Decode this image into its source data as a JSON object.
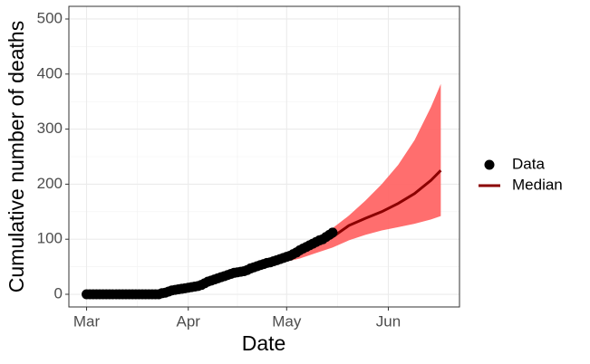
{
  "chart_data": {
    "type": "scatter",
    "x_label": "Date",
    "y_label": "Cumulative number of deaths",
    "xlim": [
      -5.4,
      113.7
    ],
    "ylim": [
      -23,
      523
    ],
    "xticks": [
      {
        "value": 0,
        "label": "Mar"
      },
      {
        "value": 31,
        "label": "Apr"
      },
      {
        "value": 61,
        "label": "May"
      },
      {
        "value": 92,
        "label": "Jun"
      }
    ],
    "yticks": [
      0,
      100,
      200,
      300,
      400,
      500
    ],
    "grid": true,
    "legend": "right",
    "series": [
      {
        "name": "Data",
        "type": "scatter",
        "color": "#000000",
        "x": [
          0,
          1,
          2,
          3,
          4,
          5,
          6,
          7,
          8,
          9,
          10,
          11,
          12,
          13,
          14,
          15,
          16,
          17,
          18,
          19,
          20,
          21,
          22,
          23,
          24,
          25,
          26,
          27,
          28,
          29,
          30,
          31,
          32,
          33,
          34,
          35,
          36,
          37,
          38,
          39,
          40,
          41,
          42,
          43,
          44,
          45,
          46,
          47,
          48,
          49,
          50,
          51,
          52,
          53,
          54,
          55,
          56,
          57,
          58,
          59,
          60,
          61,
          62,
          63,
          64,
          65,
          66,
          67,
          68,
          69,
          70,
          71,
          72,
          73,
          74,
          75
        ],
        "values": [
          0,
          0,
          0,
          0,
          0,
          0,
          0,
          0,
          0,
          0,
          0,
          0,
          0,
          0,
          0,
          0,
          0,
          0,
          0,
          0,
          0,
          0,
          0,
          2,
          3,
          5,
          7,
          8,
          9,
          10,
          11,
          12,
          13,
          14,
          15,
          17,
          20,
          23,
          25,
          27,
          29,
          31,
          33,
          35,
          37,
          39,
          40,
          41,
          42,
          44,
          47,
          49,
          51,
          53,
          55,
          57,
          58,
          60,
          62,
          64,
          66,
          68,
          70,
          73,
          76,
          80,
          83,
          86,
          89,
          92,
          95,
          98,
          100,
          104,
          108,
          112
        ]
      },
      {
        "name": "Median",
        "type": "line",
        "color": "#8b0000",
        "x": [
          0,
          5,
          10,
          15,
          20,
          25,
          30,
          35,
          40,
          45,
          50,
          55,
          60,
          65,
          70,
          75,
          80,
          85,
          90,
          95,
          100,
          105,
          108
        ],
        "values": [
          0,
          0,
          0,
          0,
          0,
          4,
          10,
          17,
          26,
          36,
          46,
          56,
          66,
          77,
          90,
          104,
          125,
          138,
          150,
          165,
          183,
          207,
          225
        ]
      }
    ],
    "ribbon": {
      "color": "#ff6666",
      "x": [
        0,
        5,
        10,
        15,
        20,
        25,
        30,
        35,
        40,
        45,
        50,
        55,
        60,
        65,
        70,
        75,
        80,
        85,
        90,
        95,
        100,
        105,
        108
      ],
      "lower": [
        0,
        0,
        0,
        0,
        0,
        2,
        7,
        14,
        22,
        31,
        40,
        49,
        58,
        65,
        75,
        85,
        98,
        108,
        116,
        122,
        128,
        136,
        142
      ],
      "upper": [
        0,
        0,
        0,
        0,
        0,
        6,
        13,
        20,
        30,
        41,
        52,
        62,
        72,
        85,
        100,
        120,
        143,
        170,
        200,
        235,
        280,
        340,
        382
      ]
    }
  }
}
